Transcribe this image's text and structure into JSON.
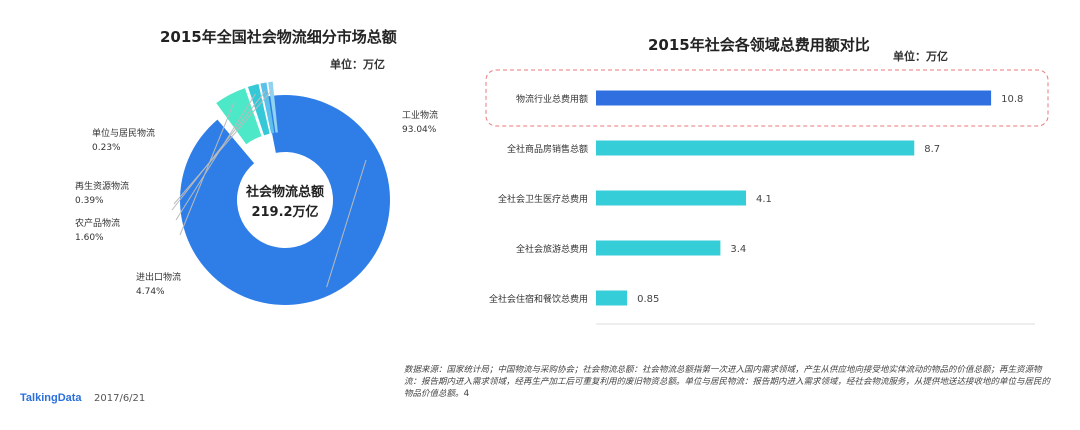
{
  "brand": "TalkingData",
  "date": "2017/6/21",
  "notes": "数据来源：国家统计局；中国物流与采购协会；社会物流总额：社会物流总额指第一次进入国内需求领域，产生从供应地向接受地实体流动的物品的价值总额；再生资源物流：报告期内进入需求领域，经再生产加工后可重复利用的废旧物资总额。单位与居民物流：报告期内进入需求领域，经社会物流服务，从提供地送达接收地的单位与居民的物品价值总额。",
  "page_number": "4",
  "chart_data": [
    {
      "type": "pie",
      "title": "2015年全国社会物流细分市场总额",
      "unit": "单位：万亿",
      "center_label": "社会物流总额",
      "center_value": "219.2万亿",
      "slices": [
        {
          "name": "工业物流",
          "value": 93.04,
          "label": "93.04%",
          "color": "#2f7ee8"
        },
        {
          "name": "进出口物流",
          "value": 4.74,
          "label": "4.74%",
          "color": "#4ce8c8"
        },
        {
          "name": "农产品物流",
          "value": 1.6,
          "label": "1.60%",
          "color": "#35c9d8"
        },
        {
          "name": "再生资源物流",
          "value": 0.39,
          "label": "0.39%",
          "color": "#5bc0ea"
        },
        {
          "name": "单位与居民物流",
          "value": 0.23,
          "label": "0.23%",
          "color": "#8fd3f0"
        }
      ]
    },
    {
      "type": "bar",
      "orientation": "horizontal",
      "title": "2015年社会各领域总费用额对比",
      "unit": "单位：万亿",
      "categories": [
        "物流行业总费用额",
        "全社商品房销售总额",
        "全社会卫生医疗总费用",
        "全社会旅游总费用",
        "全社会住宿和餐饮总费用"
      ],
      "values": [
        10.8,
        8.7,
        4.1,
        3.4,
        0.85
      ],
      "value_labels": [
        "10.8",
        "8.7",
        "4.1",
        "3.4",
        "0.85"
      ],
      "colors": [
        "#2f6fe0",
        "#35cdd8",
        "#35cdd8",
        "#35cdd8",
        "#35cdd8"
      ],
      "xlim": [
        0,
        12
      ],
      "xticks": [
        "0",
        "2",
        "4",
        "6",
        "8",
        "10",
        "12"
      ],
      "highlight": "物流行业总费用额"
    }
  ]
}
